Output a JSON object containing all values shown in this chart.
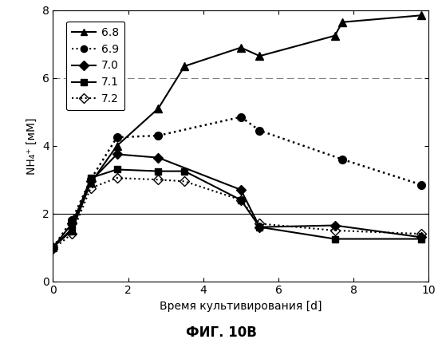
{
  "title": "ФИГ. 10В",
  "xlabel": "Время культивирования [d]",
  "ylabel": "NH₄⁺ [мМ]",
  "xlim": [
    0,
    10
  ],
  "ylim": [
    0,
    8
  ],
  "hline_solid": 2.0,
  "hline_dashed": 6.0,
  "series": {
    "6.8": {
      "x": [
        0,
        0.5,
        1.0,
        1.7,
        2.8,
        3.5,
        5.0,
        5.5,
        7.5,
        7.7,
        9.8
      ],
      "y": [
        1.0,
        1.5,
        2.9,
        4.0,
        5.1,
        6.35,
        6.9,
        6.65,
        7.25,
        7.65,
        7.85
      ],
      "linestyle": "-",
      "marker": "^",
      "color": "black",
      "linewidth": 1.5,
      "markersize": 7,
      "fillstyle": "full",
      "label": "6.8"
    },
    "6.9": {
      "x": [
        0,
        0.5,
        1.0,
        1.7,
        2.8,
        5.0,
        5.5,
        7.7,
        9.8
      ],
      "y": [
        1.0,
        1.8,
        3.0,
        4.25,
        4.3,
        4.85,
        4.45,
        3.6,
        2.85
      ],
      "linestyle": ":",
      "marker": "o",
      "color": "black",
      "linewidth": 1.8,
      "markersize": 7,
      "fillstyle": "full",
      "label": "6.9"
    },
    "7.0": {
      "x": [
        0,
        0.5,
        1.0,
        1.7,
        2.8,
        5.0,
        5.5,
        7.5,
        9.8
      ],
      "y": [
        1.0,
        1.7,
        2.95,
        3.75,
        3.65,
        2.7,
        1.6,
        1.65,
        1.3
      ],
      "linestyle": "-",
      "marker": "D",
      "color": "black",
      "linewidth": 1.5,
      "markersize": 6,
      "fillstyle": "full",
      "label": "7.0"
    },
    "7.1": {
      "x": [
        0,
        0.5,
        1.0,
        1.7,
        2.8,
        3.5,
        5.0,
        5.5,
        7.5,
        9.8
      ],
      "y": [
        1.0,
        1.55,
        3.05,
        3.3,
        3.25,
        3.25,
        2.4,
        1.6,
        1.25,
        1.25
      ],
      "linestyle": "-",
      "marker": "s",
      "color": "black",
      "linewidth": 1.5,
      "markersize": 6,
      "fillstyle": "full",
      "label": "7.1"
    },
    "7.2": {
      "x": [
        0,
        0.5,
        1.0,
        1.7,
        2.8,
        3.5,
        5.0,
        5.5,
        7.5,
        9.8
      ],
      "y": [
        0.95,
        1.4,
        2.75,
        3.05,
        3.0,
        2.95,
        2.4,
        1.7,
        1.5,
        1.4
      ],
      "linestyle": ":",
      "marker": "D",
      "color": "black",
      "linewidth": 1.5,
      "markersize": 6,
      "fillstyle": "none",
      "label": "7.2"
    }
  },
  "legend_order": [
    "6.8",
    "6.9",
    "7.0",
    "7.1",
    "7.2"
  ],
  "background_color": "#ffffff",
  "xticks": [
    0,
    2,
    4,
    6,
    8,
    10
  ],
  "yticks": [
    0,
    2,
    4,
    6,
    8
  ]
}
